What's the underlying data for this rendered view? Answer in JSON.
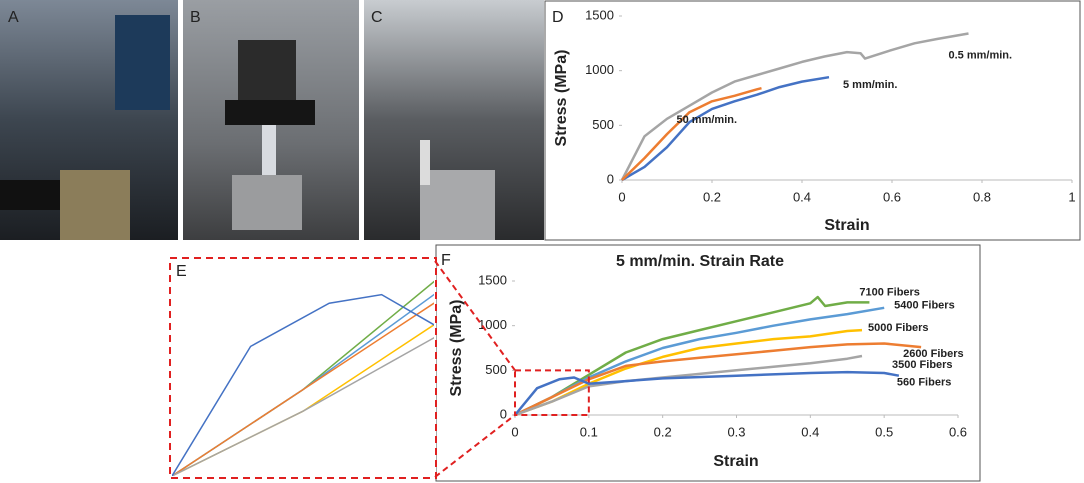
{
  "panels": [
    "A",
    "B",
    "C",
    "D",
    "E",
    "F"
  ],
  "chart_data": [
    {
      "type": "line",
      "x_label": "Strain",
      "y_label": "Stress (MPa)",
      "xlim": [
        0,
        1
      ],
      "xticks": [
        0,
        0.2,
        0.4,
        0.6,
        0.8,
        1
      ],
      "ylim": [
        0,
        1500
      ],
      "yticks": [
        0,
        500,
        1000,
        1500
      ],
      "grid": false,
      "series": [
        {
          "name": "0.5 mm/min.",
          "color": "#a5a5a5",
          "x": [
            0,
            0.05,
            0.1,
            0.15,
            0.2,
            0.25,
            0.3,
            0.35,
            0.4,
            0.45,
            0.5,
            0.53,
            0.54,
            0.6,
            0.65,
            0.7,
            0.77
          ],
          "values": [
            0,
            400,
            560,
            680,
            800,
            900,
            960,
            1020,
            1080,
            1130,
            1170,
            1160,
            1110,
            1190,
            1250,
            1290,
            1340
          ]
        },
        {
          "name": "5 mm/min.",
          "color": "#4472c4",
          "x": [
            0,
            0.05,
            0.1,
            0.15,
            0.2,
            0.25,
            0.3,
            0.35,
            0.4,
            0.46
          ],
          "values": [
            0,
            120,
            300,
            530,
            650,
            720,
            780,
            850,
            900,
            940
          ]
        },
        {
          "name": "50 mm/min.",
          "color": "#ed7d31",
          "x": [
            0,
            0.05,
            0.1,
            0.15,
            0.2,
            0.25,
            0.3,
            0.31
          ],
          "values": [
            0,
            200,
            420,
            620,
            720,
            770,
            830,
            840
          ]
        }
      ]
    },
    {
      "type": "line",
      "title": "5 mm/min. Strain Rate",
      "x_label": "Strain",
      "y_label": "Stress (MPa)",
      "xlim": [
        0,
        0.6
      ],
      "xticks": [
        0,
        0.1,
        0.2,
        0.3,
        0.4,
        0.5,
        0.6
      ],
      "ylim": [
        0,
        1500
      ],
      "yticks": [
        0,
        500,
        1000,
        1500
      ],
      "grid": false,
      "zoom": {
        "xlim": [
          0,
          0.1
        ],
        "ylim": [
          0,
          500
        ]
      },
      "series": [
        {
          "name": "7100 Fibers",
          "color": "#70ad47",
          "x": [
            0,
            0.05,
            0.1,
            0.15,
            0.2,
            0.25,
            0.3,
            0.35,
            0.4,
            0.41,
            0.42,
            0.45,
            0.48
          ],
          "values": [
            0,
            200,
            450,
            700,
            850,
            950,
            1050,
            1150,
            1250,
            1320,
            1220,
            1260,
            1260
          ]
        },
        {
          "name": "5400 Fibers",
          "color": "#5b9bd5",
          "x": [
            0,
            0.05,
            0.1,
            0.15,
            0.2,
            0.25,
            0.3,
            0.35,
            0.4,
            0.45,
            0.5
          ],
          "values": [
            0,
            200,
            420,
            600,
            750,
            850,
            920,
            1000,
            1070,
            1130,
            1200
          ]
        },
        {
          "name": "5000 Fibers",
          "color": "#ffc000",
          "x": [
            0,
            0.05,
            0.1,
            0.15,
            0.2,
            0.25,
            0.3,
            0.35,
            0.4,
            0.45,
            0.47
          ],
          "values": [
            0,
            150,
            350,
            520,
            650,
            750,
            800,
            850,
            880,
            940,
            950
          ]
        },
        {
          "name": "2600 Fibers",
          "color": "#ed7d31",
          "x": [
            0,
            0.05,
            0.1,
            0.15,
            0.2,
            0.25,
            0.3,
            0.35,
            0.4,
            0.45,
            0.5,
            0.55
          ],
          "values": [
            0,
            200,
            400,
            550,
            600,
            640,
            680,
            720,
            760,
            790,
            800,
            760
          ]
        },
        {
          "name": "3500 Fibers",
          "color": "#a5a5a5",
          "x": [
            0,
            0.05,
            0.1,
            0.15,
            0.2,
            0.25,
            0.3,
            0.35,
            0.4,
            0.45,
            0.47
          ],
          "values": [
            0,
            150,
            320,
            380,
            420,
            460,
            500,
            540,
            580,
            630,
            660
          ]
        },
        {
          "name": "560 Fibers",
          "color": "#4472c4",
          "x": [
            0,
            0.03,
            0.06,
            0.08,
            0.1,
            0.15,
            0.2,
            0.3,
            0.4,
            0.45,
            0.5,
            0.52
          ],
          "values": [
            0,
            300,
            400,
            420,
            350,
            380,
            410,
            440,
            470,
            480,
            470,
            440
          ]
        }
      ]
    }
  ]
}
